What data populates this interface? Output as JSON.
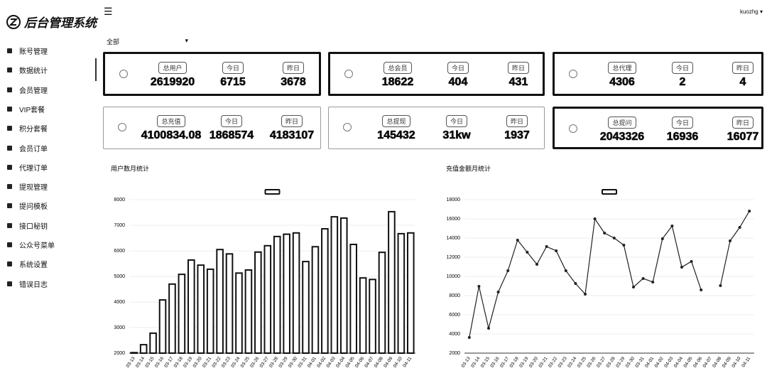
{
  "sidebar": {
    "title": "后台管理系统",
    "menu": [
      "账号管理",
      "数据统计",
      "会员管理",
      "VIP套餐",
      "积分套餐",
      "会员订单",
      "代理订单",
      "提现管理",
      "提问模板",
      "接口秘钥",
      "公众号菜单",
      "系统设置",
      "错误日志"
    ]
  },
  "header": {
    "user": "kuozhg"
  },
  "filter": "全部",
  "cards": [
    {
      "items": [
        {
          "label": "总用户",
          "value": 2619920
        },
        {
          "label": "今日",
          "value": 6715
        },
        {
          "label": "昨日",
          "value": 3678
        }
      ]
    },
    {
      "items": [
        {
          "label": "总会员",
          "value": 18622
        },
        {
          "label": "今日",
          "value": 404
        },
        {
          "label": "昨日",
          "value": 431
        }
      ]
    },
    {
      "items": [
        {
          "label": "总代理",
          "value": 4306
        },
        {
          "label": "今日",
          "value": 2
        },
        {
          "label": "昨日",
          "value": 4
        }
      ]
    },
    {
      "items": [
        {
          "label": "总充值",
          "value": 4100834.08
        },
        {
          "label": "今日",
          "value": 1868574
        },
        {
          "label": "昨日",
          "value": 4183107
        }
      ]
    },
    {
      "items": [
        {
          "label": "总提现",
          "value": 145432
        },
        {
          "label": "今日",
          "value": "31kw"
        },
        {
          "label": "昨日",
          "value": 1937
        }
      ]
    },
    {
      "items": [
        {
          "label": "总提问",
          "value": 2043326
        },
        {
          "label": "今日",
          "value": 16936
        },
        {
          "label": "昨日",
          "value": 16077
        }
      ]
    }
  ],
  "chart_data": [
    {
      "type": "bar",
      "title": "用户数月统计",
      "color": "#ffffff",
      "categories": [
        "03-13",
        "03-14",
        "03-15",
        "03-16",
        "03-17",
        "03-18",
        "03-19",
        "03-20",
        "03-21",
        "03-22",
        "03-23",
        "03-24",
        "03-25",
        "03-26",
        "03-27",
        "03-28",
        "03-29",
        "03-30",
        "03-31",
        "04-01",
        "04-02",
        "04-03",
        "04-04",
        "04-05",
        "04-06",
        "04-07",
        "04-08",
        "04-09",
        "04-10",
        "04-11"
      ],
      "values": [
        2020,
        2330,
        2780,
        4080,
        4700,
        5080,
        5640,
        5440,
        5280,
        6050,
        5880,
        5130,
        5250,
        5950,
        6200,
        6560,
        6650,
        6700,
        5580,
        6160,
        6860,
        7330,
        7280,
        6250,
        4940,
        4880,
        5940,
        7530,
        6670,
        6700
      ],
      "ylim": [
        2000,
        8000
      ],
      "yticks": [
        2000,
        3000,
        4000,
        5000,
        6000,
        7000,
        8000
      ]
    },
    {
      "type": "line",
      "title": "充值金额月统计",
      "color": "#222222",
      "categories": [
        "03-13",
        "03-14",
        "03-15",
        "03-16",
        "03-17",
        "03-18",
        "03-19",
        "03-20",
        "03-21",
        "03-22",
        "03-23",
        "03-24",
        "03-25",
        "03-26",
        "03-27",
        "03-28",
        "03-29",
        "03-30",
        "03-31",
        "04-01",
        "04-02",
        "04-03",
        "04-04",
        "04-05",
        "04-06",
        "04-07",
        "04-08",
        "04-09",
        "04-10",
        "04-11"
      ],
      "values": [
        3630,
        8960,
        4590,
        8370,
        10590,
        13780,
        12520,
        11260,
        13110,
        12670,
        10590,
        9260,
        8150,
        16000,
        14520,
        14000,
        13260,
        8890,
        9780,
        9410,
        13930,
        15260,
        10960,
        11560,
        8590,
        null,
        9040,
        13700,
        15110,
        16810
      ],
      "ylim": [
        2000,
        18000
      ],
      "yticks": [
        2000,
        4000,
        6000,
        8000,
        10000,
        12000,
        14000,
        16000,
        18000
      ]
    }
  ]
}
